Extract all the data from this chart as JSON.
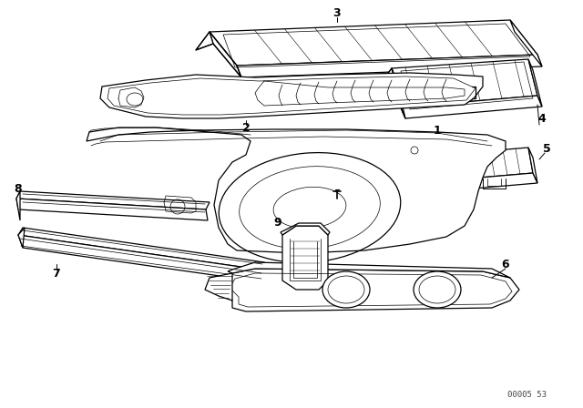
{
  "bg_color": "#ffffff",
  "line_color": "#000000",
  "fig_width": 6.4,
  "fig_height": 4.48,
  "dpi": 100,
  "watermark": "00005 53"
}
